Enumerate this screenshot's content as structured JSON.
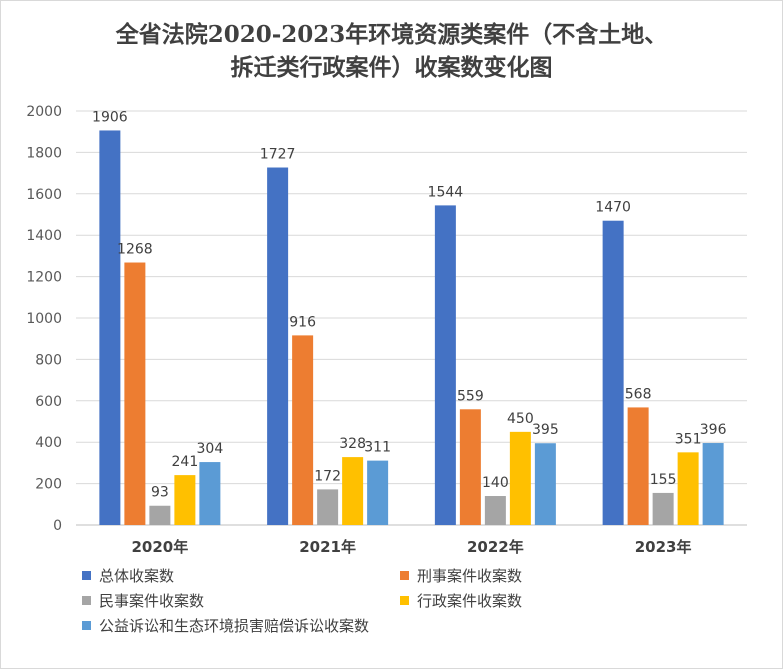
{
  "chart_data": {
    "type": "bar",
    "title_line1": "全省法院2020-2023年环境资源类案件（不含土地、",
    "title_line2": "拆迁类行政案件）收案数变化图",
    "categories": [
      "2020年",
      "2021年",
      "2022年",
      "2023年"
    ],
    "ylim": [
      0,
      2000
    ],
    "yticks": [
      "0",
      "200",
      "400",
      "600",
      "800",
      "1000",
      "1200",
      "1400",
      "1600",
      "1800",
      "2000"
    ],
    "grid": true,
    "legend_position": "bottom",
    "series": [
      {
        "name": "总体收案数",
        "color": "#4472C4",
        "values": [
          1906,
          1727,
          1544,
          1470
        ]
      },
      {
        "name": "刑事案件收案数",
        "color": "#ED7D31",
        "values": [
          1268,
          916,
          559,
          568
        ]
      },
      {
        "name": "民事案件收案数",
        "color": "#A5A5A5",
        "values": [
          93,
          172,
          140,
          155
        ]
      },
      {
        "name": "行政案件收案数",
        "color": "#FFC000",
        "values": [
          241,
          328,
          450,
          351
        ]
      },
      {
        "name": "公益诉讼和生态环境损害赔偿诉讼收案数",
        "color": "#5B9BD5",
        "values": [
          304,
          311,
          395,
          396
        ]
      }
    ]
  }
}
